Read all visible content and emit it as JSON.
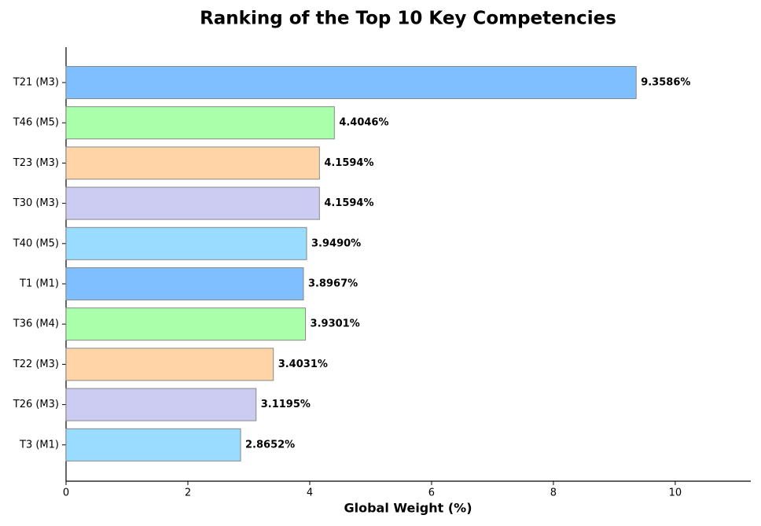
{
  "chart_data": {
    "type": "barh",
    "title": "Ranking of the Top 10 Key Competencies",
    "x_label": "Global Weight (%)",
    "categories": [
      "T21 (M3)",
      "T46 (M5)",
      "T23 (M3)",
      "T30 (M3)",
      "T40 (M5)",
      "T1 (M1)",
      "T36 (M4)",
      "T22 (M3)",
      "T26 (M3)",
      "T3 (M1)"
    ],
    "values": [
      9.3586,
      4.4046,
      4.1594,
      4.1594,
      3.949,
      3.8967,
      3.9301,
      3.4031,
      3.1195,
      2.8652
    ],
    "value_labels": [
      "9.3586%",
      "4.4046%",
      "4.1594%",
      "4.1594%",
      "3.9490%",
      "3.8967%",
      "3.9301%",
      "3.4031%",
      "3.1195%",
      "2.8652%"
    ],
    "colors": [
      "#80bfff",
      "#aaffaa",
      "#ffd5a8",
      "#ccccf2",
      "#99dcff",
      "#80bfff",
      "#aaffaa",
      "#ffd5a8",
      "#ccccf2",
      "#99dcff"
    ],
    "xlim": [
      0,
      11.24
    ],
    "xticks": [
      0,
      2,
      4,
      6,
      8,
      10
    ]
  }
}
